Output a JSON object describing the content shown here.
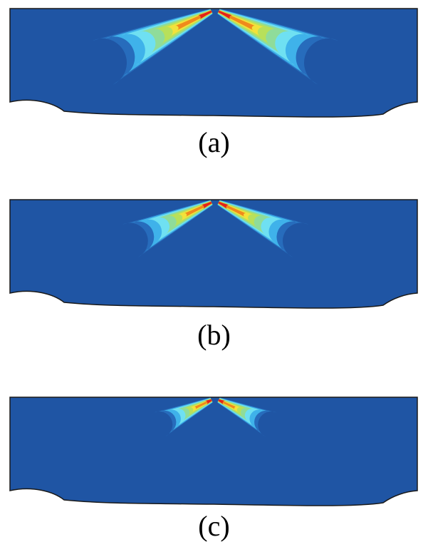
{
  "background_color": "#1f55a4",
  "outline_color": "#1a1a1a",
  "panels": [
    {
      "caption": "(a)",
      "plume_scale": 1.0
    },
    {
      "caption": "(b)",
      "plume_scale": 0.75
    },
    {
      "caption": "(c)",
      "plume_scale": 0.48
    }
  ]
}
